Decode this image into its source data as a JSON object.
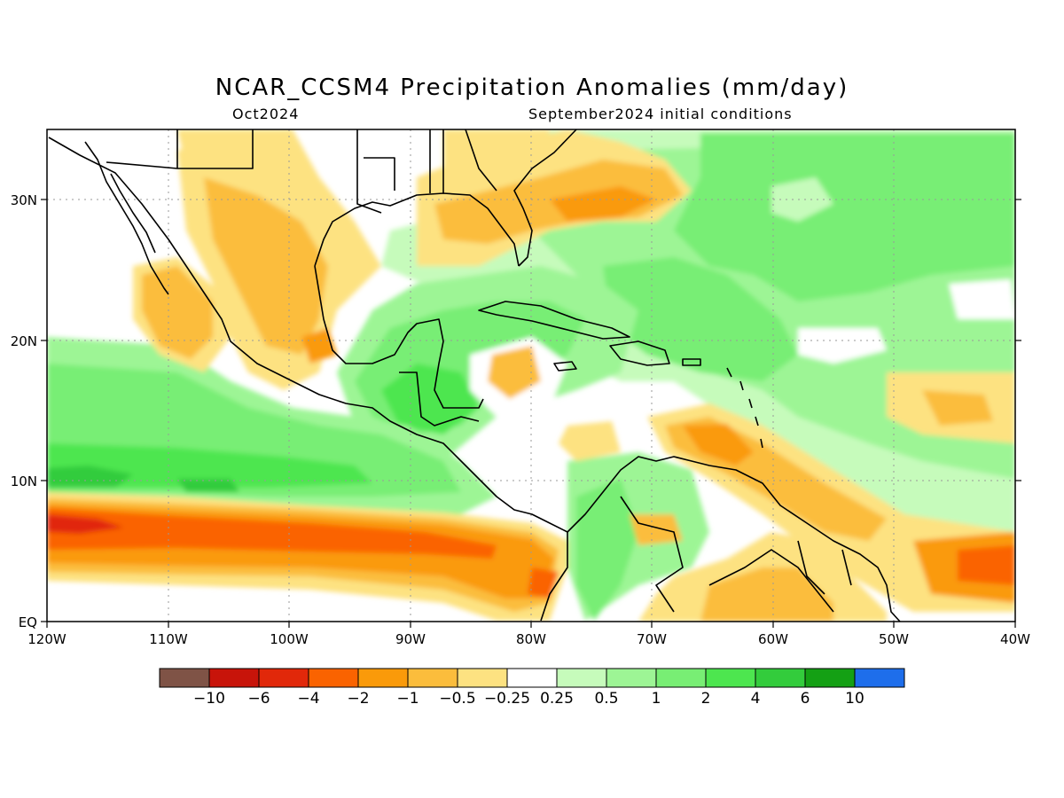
{
  "title": "NCAR_CCSM4 Precipitation Anomalies (mm/day)",
  "subtitle_left": "Oct2024",
  "subtitle_right": "September2024 initial conditions",
  "map": {
    "lon_range": [
      -120,
      -40
    ],
    "lat_range": [
      0,
      35
    ],
    "x_tick_labels": [
      "120W",
      "110W",
      "100W",
      "90W",
      "80W",
      "70W",
      "60W",
      "50W",
      "40W"
    ],
    "y_tick_labels": [
      "EQ",
      "10N",
      "20N",
      "30N"
    ],
    "grid": "dotted"
  },
  "colorbar": {
    "colors": [
      "#7f5346",
      "#c8140a",
      "#e1280a",
      "#fa6300",
      "#fa9a0a",
      "#fbbd3c",
      "#fde281",
      "#ffffff",
      "#c6fbbb",
      "#9df595",
      "#78ee74",
      "#4de64f",
      "#33cc3c",
      "#14a014",
      "#1e6eeb"
    ],
    "labels": [
      "−10",
      "−6",
      "−4",
      "−2",
      "−1",
      "−0.5",
      "−0.25",
      "0.25",
      "0.5",
      "1",
      "2",
      "4",
      "6",
      "10"
    ]
  }
}
